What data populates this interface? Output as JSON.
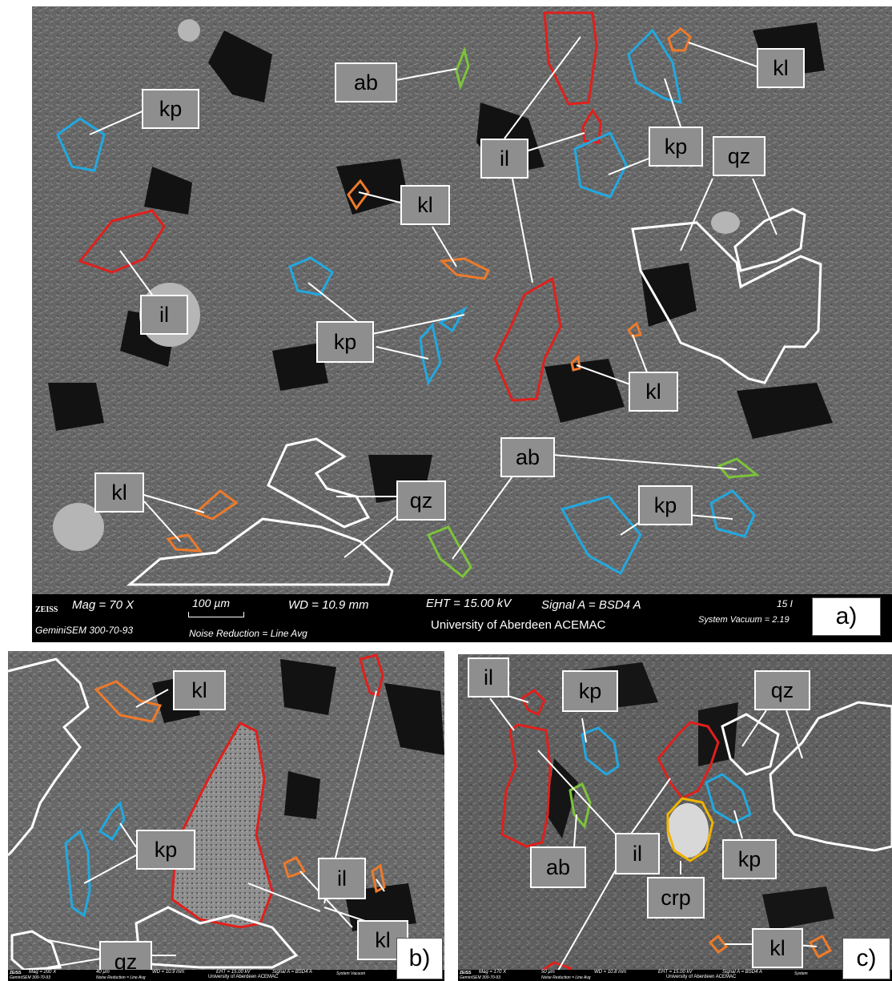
{
  "panels": {
    "a": {
      "panel_id": "a)",
      "labels": {
        "ab_top": "ab",
        "kl_top_right": "kl",
        "kp_top_left": "kp",
        "il_top": "il",
        "kp_top_right": "kp",
        "qz_top_right": "qz",
        "kl_center": "kl",
        "il_left": "il",
        "kp_center": "kp",
        "kl_right": "kl",
        "ab_bottom": "ab",
        "kl_bottom_left": "kl",
        "qz_bottom": "qz",
        "kp_bottom_right": "kp"
      },
      "databar": {
        "brand": "ZEISS",
        "mag": "Mag =   70 X",
        "scale": "100 µm",
        "wd": "WD = 10.9 mm",
        "eht": "EHT = 15.00 kV",
        "signal": "Signal A = BSD4 A",
        "extra": "15 I",
        "model": "GeminiSEM 300-70-93",
        "noise": "Noise Reduction = Line Avg",
        "university": "University of Aberdeen  ACEMAC",
        "vacuum": "System Vacuum = 2.19"
      }
    },
    "b": {
      "panel_id": "b)",
      "labels": {
        "kl_top": "kl",
        "il": "il",
        "kp": "kp",
        "kl_right": "kl",
        "qz": "qz"
      },
      "databar": {
        "brand": "ZEISS",
        "mag": "Mag =  200 X",
        "scale": "40 µm",
        "wd": "WD = 10.9 mm",
        "eht": "EHT = 15.00 kV",
        "signal": "Signal A = BSD4 A",
        "vacuum": "System Vacuum",
        "model": "GeminiSEM 300-70-93",
        "noise": "Noise Reduction = Line Avg",
        "university": "University of Aberdeen  ACEMAC"
      }
    },
    "c": {
      "panel_id": "c)",
      "labels": {
        "il_top": "il",
        "kp_top": "kp",
        "qz": "qz",
        "il_center": "il",
        "ab": "ab",
        "kp_right": "kp",
        "crp": "crp",
        "kl": "kl"
      },
      "databar": {
        "brand": "ZEISS",
        "mag": "Mag =  170 X",
        "scale": "50 µm",
        "wd": "WD = 10.8 mm",
        "eht": "EHT = 15.00 kV",
        "signal": "Signal A = BSD4 A",
        "vacuum": "System",
        "model": "GeminiSEM 300-70-93",
        "noise": "Noise Reduction = Line Avg",
        "university": "University of Aberdeen  ACEMAC"
      }
    }
  },
  "colors": {
    "illite": "#e0201c",
    "kaolinite": "#ee7a2a",
    "k_feldspar": "#22a8e0",
    "albite": "#7cc43a",
    "quartz": "#ffffff",
    "crp": "#f0b400",
    "background": "#6a6a6a",
    "pore": "#141414"
  }
}
